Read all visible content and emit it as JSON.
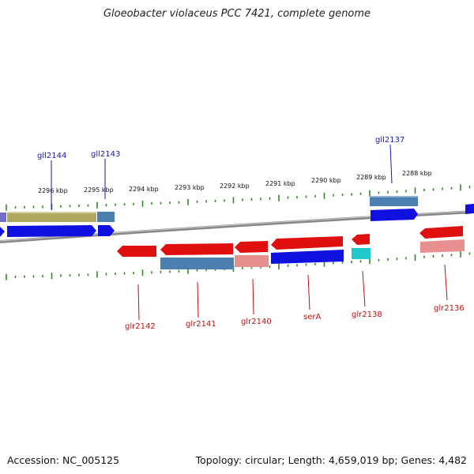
{
  "title": "Gloeobacter violaceus PCC 7421, complete genome",
  "footer": {
    "accession": "Accession: NC_005125",
    "topology": "Topology: circular; Length: 4,659,019 bp; Genes: 4,482"
  },
  "colors": {
    "forward_gene": "#1010e0",
    "reverse_gene": "#e01010",
    "forward_label": "#1a1aa8",
    "reverse_label": "#c01010",
    "tick": "#2e8b20",
    "backbone": "#888888",
    "cds_steel": "#4a7fb0",
    "cds_olive": "#b0a860",
    "cds_pink": "#e89090",
    "cds_cyan": "#20c8c8"
  },
  "scale_labels": [
    "2296 kbp",
    "2295 kbp",
    "2294 kbp",
    "2293 kbp",
    "2292 kbp",
    "2291 kbp",
    "2290 kbp",
    "2289 kbp",
    "2288 kbp"
  ],
  "genes_forward": [
    "gll2144",
    "gll2143",
    "gll2137"
  ],
  "genes_reverse": [
    "glr2142",
    "glr2141",
    "glr2140",
    "serA",
    "glr2138",
    "glr2136"
  ]
}
